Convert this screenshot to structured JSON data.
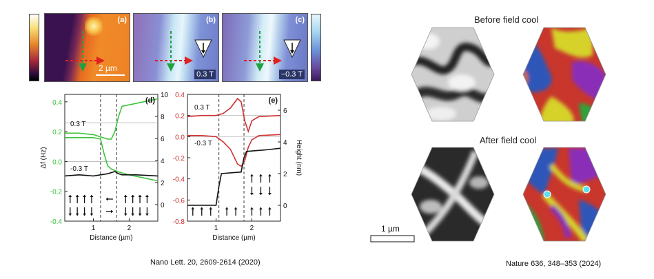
{
  "left_figure": {
    "panels": {
      "a": {
        "label": "(a)",
        "scalebar": "2 µm"
      },
      "b": {
        "label": "(b)",
        "field": "0.3 T"
      },
      "c": {
        "label": "(c)",
        "field": "−0.3 T"
      }
    },
    "citation": "Nano Lett. 20, 2609-2614 (2020)"
  },
  "chart_data": [
    {
      "type": "line",
      "panel_label": "(d)",
      "xlabel": "Distance (µm)",
      "ylabel_left": "Δf (Hz)",
      "ylabel_right": "",
      "xlim": [
        0.2,
        2.8
      ],
      "ylim_left": [
        -0.4,
        0.45
      ],
      "ylim_right": [
        -1.5,
        10
      ],
      "x_ticks": [
        "1",
        "2"
      ],
      "y_ticks_left": [
        "0.4",
        "0.2",
        "0.0",
        "-0.2",
        "-0.4"
      ],
      "y_ticks_right": [
        "10",
        "8",
        "6",
        "4",
        "2",
        "0"
      ],
      "annotations": [
        "0.3 T",
        "-0.3 T"
      ],
      "series": [
        {
          "label": "0.3 T",
          "color": "#3cc43c",
          "x": [
            0.2,
            0.6,
            1.0,
            1.4,
            1.5,
            1.6,
            1.7,
            1.8,
            2.0,
            2.4,
            2.8
          ],
          "y": [
            0.19,
            0.19,
            0.18,
            0.15,
            0.15,
            0.2,
            0.3,
            0.37,
            0.38,
            0.4,
            0.42
          ]
        },
        {
          "label": "-0.3 T",
          "color": "#3cc43c",
          "x": [
            0.2,
            0.6,
            1.0,
            1.2,
            1.3,
            1.4,
            1.5,
            1.7,
            2.0,
            2.4,
            2.8
          ],
          "y": [
            0.16,
            0.16,
            0.16,
            0.15,
            0.05,
            -0.03,
            -0.05,
            -0.07,
            -0.09,
            -0.11,
            -0.13
          ]
        },
        {
          "label": "height",
          "color": "#111111",
          "axis": "right",
          "x": [
            0.2,
            0.6,
            1.0,
            1.2,
            1.4,
            1.6,
            1.7,
            1.8,
            2.2,
            2.8
          ],
          "y": [
            2.6,
            2.7,
            2.6,
            2.7,
            2.8,
            3.0,
            2.8,
            2.7,
            2.7,
            2.6
          ]
        }
      ]
    },
    {
      "type": "line",
      "panel_label": "(e)",
      "xlabel": "Distance (µm)",
      "ylabel_left": "",
      "ylabel_right": "Height (nm)",
      "xlim": [
        0.2,
        2.8
      ],
      "ylim_left": [
        -0.8,
        0.4
      ],
      "ylim_right": [
        -1,
        7
      ],
      "x_ticks": [
        "1",
        "2"
      ],
      "y_ticks_left": [
        "0.4",
        "0.2",
        "0.0",
        "-0.2",
        "-0.4",
        "-0.6",
        "-0.8"
      ],
      "y_ticks_right": [
        "6",
        "4",
        "2",
        "0"
      ],
      "annotations": [
        "0.3 T",
        "-0.3 T"
      ],
      "series": [
        {
          "label": "0.3 T",
          "color": "#d13030",
          "x": [
            0.2,
            0.6,
            1.0,
            1.2,
            1.4,
            1.6,
            1.7,
            1.8,
            1.9,
            2.0,
            2.2,
            2.8
          ],
          "y": [
            0.19,
            0.2,
            0.2,
            0.22,
            0.27,
            0.36,
            0.33,
            0.15,
            0.05,
            0.15,
            0.19,
            0.2
          ]
        },
        {
          "label": "-0.3 T",
          "color": "#d13030",
          "x": [
            0.2,
            0.6,
            1.0,
            1.2,
            1.4,
            1.6,
            1.7,
            1.8,
            1.9,
            2.0,
            2.2,
            2.8
          ],
          "y": [
            0.01,
            0.01,
            0.0,
            -0.05,
            -0.12,
            -0.26,
            -0.28,
            -0.23,
            -0.1,
            -0.03,
            0.01,
            0.02
          ]
        },
        {
          "label": "height",
          "color": "#111111",
          "axis": "right",
          "x": [
            0.2,
            0.5,
            1.0,
            1.08,
            1.15,
            1.7,
            1.78,
            1.85,
            2.4,
            2.8
          ],
          "y": [
            0.0,
            0.0,
            0.0,
            1.2,
            2.0,
            2.1,
            3.0,
            3.4,
            3.5,
            3.6
          ]
        }
      ]
    }
  ],
  "right_figure": {
    "before_title": "Before field cool",
    "after_title": "After field cool",
    "scalebar": "1 µm",
    "citation": "Nature 636, 348–353 (2024)"
  },
  "colors": {
    "green_trace": "#3cc43c",
    "red_trace": "#d13030",
    "domain_palette": [
      "#c8362c",
      "#2d56b8",
      "#d6d22a",
      "#2ea33b",
      "#8a2db8",
      "#d56a1f"
    ]
  }
}
